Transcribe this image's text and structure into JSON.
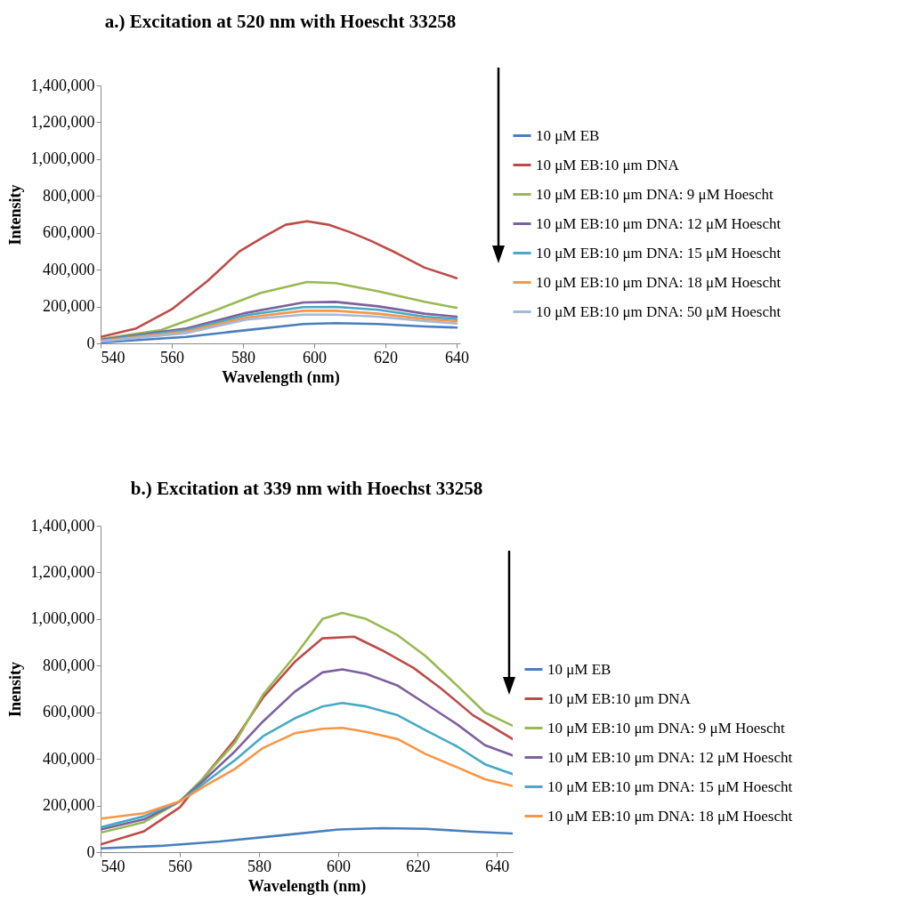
{
  "chart_data": [
    {
      "type": "line",
      "title": "a.) Excitation at 520 nm with Hoescht 33258",
      "xlabel": "Wavelength (nm)",
      "ylabel": "Intensity",
      "xlim": [
        540,
        641
      ],
      "xticks": [
        540,
        560,
        580,
        600,
        620,
        640
      ],
      "ylim": [
        0,
        1400000
      ],
      "yticks": [
        0,
        {
          "value": 200000,
          "label": "200,000"
        },
        {
          "value": 400000,
          "label": "400,000"
        },
        {
          "value": 600000,
          "label": "600,000"
        },
        {
          "value": 800000,
          "label": "800,000"
        },
        {
          "value": 1000000,
          "label": "1,000,000"
        },
        {
          "value": 1200000,
          "label": "1,200,000"
        },
        {
          "value": 1400000,
          "label": "1,400,000"
        }
      ],
      "grid": false,
      "legend": "right",
      "marker": "none",
      "line_style": "solid",
      "series": [
        {
          "name": "10 μM EB",
          "color": "#4a7ebb",
          "x": [
            540,
            564,
            581,
            597,
            606,
            618,
            631,
            640
          ],
          "values": [
            5000,
            35000,
            72000,
            105000,
            110000,
            105000,
            92000,
            86000
          ]
        },
        {
          "name": "10 μM EB:10 μm DNA",
          "color": "#be4b48",
          "x": [
            540,
            550,
            560,
            570,
            579,
            586,
            592,
            598,
            604,
            610,
            616,
            623,
            631,
            640
          ],
          "values": [
            35000,
            81000,
            185000,
            338000,
            499000,
            580000,
            644000,
            663000,
            644000,
            604000,
            556000,
            491000,
            411000,
            354000
          ]
        },
        {
          "name": "10 μM EB:10 μm DNA: 9 μM Hoescht",
          "color": "#98b954",
          "x": [
            540,
            557,
            573,
            585,
            598,
            606,
            618,
            631,
            640
          ],
          "values": [
            24000,
            72000,
            185000,
            274000,
            333000,
            327000,
            282000,
            226000,
            193000
          ]
        },
        {
          "name": "10 μM EB:10 μm DNA: 12 μM Hoescht",
          "color": "#7d60a0",
          "x": [
            540,
            564,
            581,
            597,
            606,
            618,
            631,
            640
          ],
          "values": [
            19000,
            81000,
            166000,
            222000,
            225000,
            201000,
            161000,
            145000
          ]
        },
        {
          "name": "10 μM EB:10 μm DNA: 15 μM Hoescht",
          "color": "#46aac5",
          "x": [
            540,
            564,
            581,
            597,
            606,
            618,
            631,
            640
          ],
          "values": [
            15000,
            72000,
            153000,
            197000,
            198000,
            182000,
            145000,
            132000
          ]
        },
        {
          "name": "10 μM EB:10 μm DNA: 18 μM Hoescht",
          "color": "#f79646",
          "x": [
            540,
            564,
            581,
            597,
            606,
            618,
            631,
            640
          ],
          "values": [
            13000,
            64000,
            140000,
            177000,
            177000,
            161000,
            132000,
            121000
          ]
        },
        {
          "name": "10 μM EB:10 μm DNA: 50 μM Hoescht",
          "color": "#a5b8d8",
          "x": [
            540,
            564,
            581,
            597,
            606,
            618,
            631,
            640
          ],
          "values": [
            10000,
            56000,
            129000,
            156000,
            156000,
            145000,
            121000,
            108000
          ]
        }
      ]
    },
    {
      "type": "line",
      "title": "b.) Excitation at 339 nm with Hoechst 33258",
      "xlabel": "Wavelength (nm)",
      "ylabel": "Inensity",
      "xlim": [
        540,
        644
      ],
      "xticks": [
        540,
        560,
        580,
        600,
        620,
        640
      ],
      "ylim": [
        0,
        1400000
      ],
      "yticks": [
        0,
        {
          "value": 200000,
          "label": "200,000"
        },
        {
          "value": 400000,
          "label": "400,000"
        },
        {
          "value": 600000,
          "label": "600,000"
        },
        {
          "value": 800000,
          "label": "800,000"
        },
        {
          "value": 1000000,
          "label": "1,000,000"
        },
        {
          "value": 1200000,
          "label": "1,200,000"
        },
        {
          "value": 1400000,
          "label": "1,400,000"
        }
      ],
      "grid": false,
      "legend": "right",
      "marker": "none",
      "line_style": "solid",
      "series": [
        {
          "name": "10 μM EB",
          "color": "#4a7ebb",
          "x": [
            540,
            555,
            570,
            585,
            600,
            611,
            622,
            634,
            644
          ],
          "values": [
            16000,
            27000,
            46000,
            71000,
            97000,
            103000,
            100000,
            88000,
            80000
          ]
        },
        {
          "name": "10 μM EB:10 μm DNA",
          "color": "#be4b48",
          "x": [
            540,
            551,
            560,
            566,
            574,
            581,
            589,
            596,
            604,
            611,
            619,
            626,
            634,
            644
          ],
          "values": [
            33000,
            90000,
            192000,
            319000,
            485000,
            663000,
            816000,
            917000,
            924000,
            866000,
            790000,
            701000,
            587000,
            485000
          ]
        },
        {
          "name": "10 μM EB:10 μm DNA: 9 μM Hoescht",
          "color": "#98b954",
          "x": [
            540,
            551,
            560,
            566,
            574,
            581,
            589,
            596,
            601,
            607,
            615,
            622,
            630,
            637,
            644
          ],
          "values": [
            84000,
            129000,
            218000,
            319000,
            472000,
            676000,
            841000,
            1000000,
            1026000,
            1000000,
            930000,
            841000,
            714000,
            599000,
            542000
          ]
        },
        {
          "name": "10 μM EB:10 μm DNA: 12 μM Hoescht",
          "color": "#7d60a0",
          "x": [
            540,
            551,
            560,
            566,
            574,
            581,
            589,
            596,
            601,
            607,
            615,
            622,
            630,
            637,
            644
          ],
          "values": [
            97000,
            141000,
            218000,
            307000,
            434000,
            561000,
            688000,
            771000,
            784000,
            765000,
            714000,
            637000,
            548000,
            459000,
            415000
          ]
        },
        {
          "name": "10 μM EB:10 μm DNA: 15 μM Hoescht",
          "color": "#46aac5",
          "x": [
            540,
            551,
            560,
            566,
            574,
            581,
            589,
            596,
            601,
            607,
            615,
            622,
            630,
            637,
            644
          ],
          "values": [
            106000,
            154000,
            218000,
            294000,
            396000,
            497000,
            574000,
            625000,
            640000,
            625000,
            587000,
            523000,
            453000,
            377000,
            335000
          ]
        },
        {
          "name": "10 μM EB:10 μm DNA: 18 μM Hoescht",
          "color": "#f79646",
          "x": [
            540,
            551,
            560,
            566,
            574,
            581,
            589,
            596,
            601,
            607,
            615,
            622,
            630,
            637,
            644
          ],
          "values": [
            144000,
            167000,
            218000,
            281000,
            358000,
            447000,
            510000,
            529000,
            533000,
            516000,
            485000,
            421000,
            364000,
            313000,
            284000
          ]
        }
      ]
    }
  ]
}
